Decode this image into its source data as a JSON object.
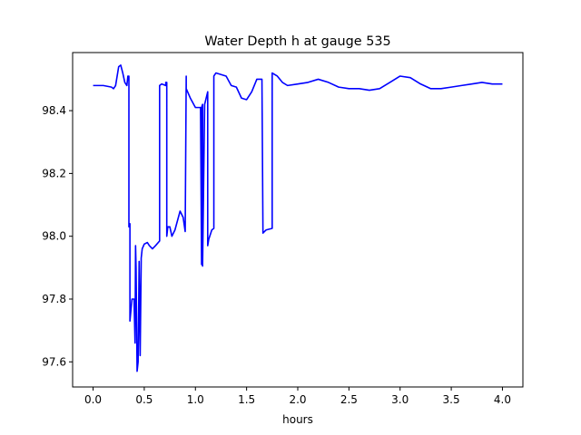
{
  "chart_data": {
    "type": "line",
    "title": "Water Depth h at gauge 535",
    "xlabel": "hours",
    "ylabel": "",
    "xlim": [
      -0.2,
      4.2
    ],
    "ylim": [
      97.52,
      98.585
    ],
    "xticks": [
      0.0,
      0.5,
      1.0,
      1.5,
      2.0,
      2.5,
      3.0,
      3.5,
      4.0
    ],
    "xtick_labels": [
      "0.0",
      "0.5",
      "1.0",
      "1.5",
      "2.0",
      "2.5",
      "3.0",
      "3.5",
      "4.0"
    ],
    "yticks": [
      97.6,
      97.8,
      98.0,
      98.2,
      98.4
    ],
    "ytick_labels": [
      "97.6",
      "97.8",
      "98.0",
      "98.2",
      "98.4"
    ],
    "grid": false,
    "series": [
      {
        "color": "#0000ff",
        "x": [
          0.0,
          0.1,
          0.18,
          0.2,
          0.22,
          0.25,
          0.27,
          0.29,
          0.31,
          0.33,
          0.34,
          0.35,
          0.35,
          0.36,
          0.36,
          0.38,
          0.4,
          0.41,
          0.415,
          0.42,
          0.43,
          0.44,
          0.45,
          0.46,
          0.47,
          0.47,
          0.48,
          0.5,
          0.53,
          0.55,
          0.58,
          0.61,
          0.65,
          0.65,
          0.67,
          0.71,
          0.71,
          0.72,
          0.72,
          0.73,
          0.75,
          0.77,
          0.8,
          0.85,
          0.88,
          0.9,
          0.91,
          0.91,
          0.95,
          1.0,
          1.05,
          1.06,
          1.06,
          1.07,
          1.07,
          1.09,
          1.12,
          1.12,
          1.13,
          1.16,
          1.18,
          1.18,
          1.2,
          1.25,
          1.3,
          1.35,
          1.4,
          1.45,
          1.5,
          1.55,
          1.6,
          1.65,
          1.66,
          1.69,
          1.75,
          1.75,
          1.8,
          1.85,
          1.9,
          2.0,
          2.1,
          2.2,
          2.3,
          2.4,
          2.5,
          2.6,
          2.7,
          2.8,
          2.9,
          3.0,
          3.1,
          3.2,
          3.3,
          3.4,
          3.5,
          3.6,
          3.7,
          3.8,
          3.9,
          4.0
        ],
        "y": [
          98.48,
          98.48,
          98.475,
          98.47,
          98.48,
          98.54,
          98.545,
          98.52,
          98.49,
          98.48,
          98.51,
          98.51,
          98.03,
          98.04,
          97.73,
          97.8,
          97.8,
          97.66,
          97.97,
          97.9,
          97.57,
          97.6,
          97.92,
          97.62,
          97.92,
          97.93,
          97.96,
          97.975,
          97.98,
          97.97,
          97.96,
          97.97,
          97.985,
          98.48,
          98.485,
          98.48,
          98.49,
          98.49,
          98.0,
          98.03,
          98.03,
          98.0,
          98.02,
          98.08,
          98.06,
          98.015,
          98.51,
          98.47,
          98.44,
          98.41,
          98.41,
          97.91,
          98.41,
          98.42,
          97.905,
          98.42,
          98.46,
          97.97,
          97.99,
          98.02,
          98.025,
          98.51,
          98.52,
          98.515,
          98.51,
          98.48,
          98.475,
          98.44,
          98.435,
          98.46,
          98.5,
          98.5,
          98.01,
          98.02,
          98.025,
          98.52,
          98.51,
          98.49,
          98.48,
          98.485,
          98.49,
          98.5,
          98.49,
          98.475,
          98.47,
          98.47,
          98.465,
          98.47,
          98.49,
          98.51,
          98.505,
          98.485,
          98.47,
          98.47,
          98.475,
          98.48,
          98.485,
          98.49,
          98.485,
          98.485
        ]
      }
    ]
  }
}
